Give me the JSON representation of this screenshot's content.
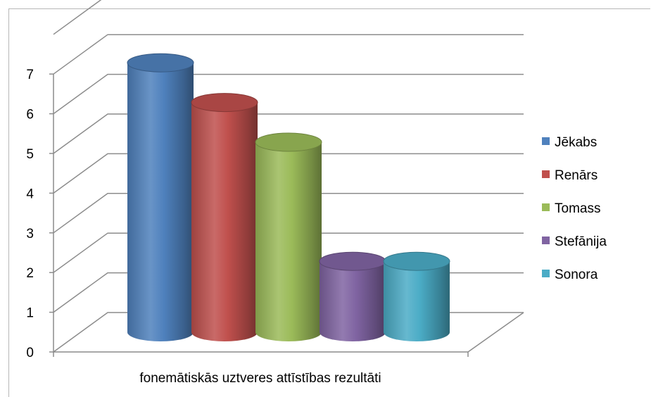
{
  "chart_data": {
    "type": "bar",
    "style": "3d-cylinder",
    "categories": [
      "fonemātiskās uztveres attīstības rezultāti"
    ],
    "series": [
      {
        "name": "Jēkabs",
        "values": [
          7
        ],
        "color": "#4F81BD"
      },
      {
        "name": "Renārs",
        "values": [
          6
        ],
        "color": "#C0504D"
      },
      {
        "name": "Tomass",
        "values": [
          5
        ],
        "color": "#9BBB59"
      },
      {
        "name": "Stefānija",
        "values": [
          2
        ],
        "color": "#8064A2"
      },
      {
        "name": "Sonora",
        "values": [
          2
        ],
        "color": "#4BACC6"
      }
    ],
    "yticks": [
      "0",
      "1",
      "2",
      "3",
      "4",
      "5",
      "6",
      "7"
    ],
    "ylim": [
      0,
      8
    ],
    "grid": true,
    "legend": "right"
  }
}
